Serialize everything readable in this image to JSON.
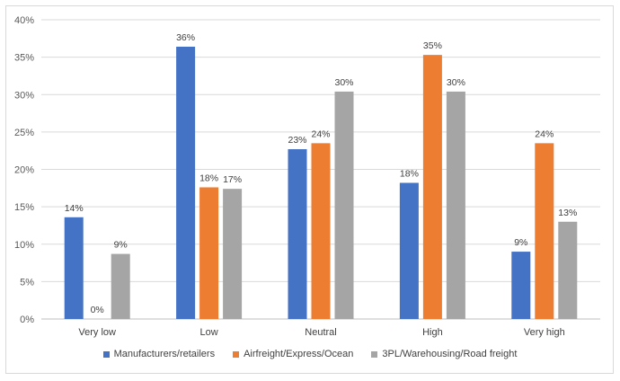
{
  "chart_data": {
    "type": "bar",
    "categories": [
      "Very low",
      "Low",
      "Neutral",
      "High",
      "Very high"
    ],
    "series": [
      {
        "name": "Manufacturers/retailers",
        "color": "#4472C4",
        "values": [
          14,
          36,
          23,
          18,
          9
        ],
        "labels": [
          "14%",
          "36%",
          "23%",
          "18%",
          "9%"
        ],
        "plot_values": [
          13.6,
          36.4,
          22.7,
          18.2,
          9.0
        ]
      },
      {
        "name": "Airfreight/Express/Ocean",
        "color": "#ED7D31",
        "values": [
          0,
          18,
          24,
          35,
          24
        ],
        "labels": [
          "0%",
          "18%",
          "24%",
          "35%",
          "24%"
        ],
        "plot_values": [
          0,
          17.6,
          23.5,
          35.3,
          23.5
        ]
      },
      {
        "name": "3PL/Warehousing/Road freight",
        "color": "#A5A5A5",
        "values": [
          9,
          17,
          30,
          30,
          13
        ],
        "labels": [
          "9%",
          "17%",
          "30%",
          "30%",
          "13%"
        ],
        "plot_values": [
          8.7,
          17.4,
          30.4,
          30.4,
          13.0
        ]
      }
    ],
    "yticks": [
      "0%",
      "5%",
      "10%",
      "15%",
      "20%",
      "25%",
      "30%",
      "35%",
      "40%"
    ],
    "ylim": [
      0,
      40
    ],
    "grid": true,
    "legend_position": "bottom"
  }
}
